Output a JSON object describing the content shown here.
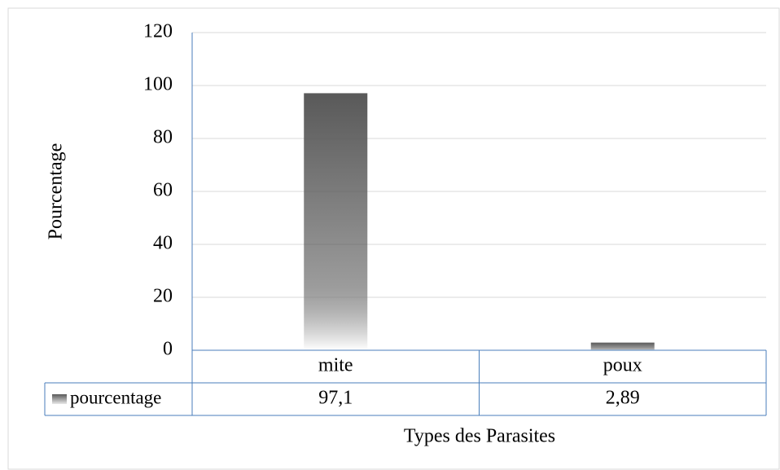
{
  "chart_data": {
    "type": "bar",
    "categories": [
      "mite",
      "poux"
    ],
    "series": [
      {
        "name": "pourcentage",
        "color": "#595959",
        "values": [
          97.1,
          2.89
        ],
        "value_labels": [
          "97,1",
          "2,89"
        ]
      }
    ],
    "ylim": [
      0,
      120
    ],
    "yticks": [
      0,
      20,
      40,
      60,
      80,
      100,
      120
    ],
    "ylabel": "Pourcentage",
    "xlabel": "Types des Parasites",
    "grid": true,
    "data_table": true
  }
}
